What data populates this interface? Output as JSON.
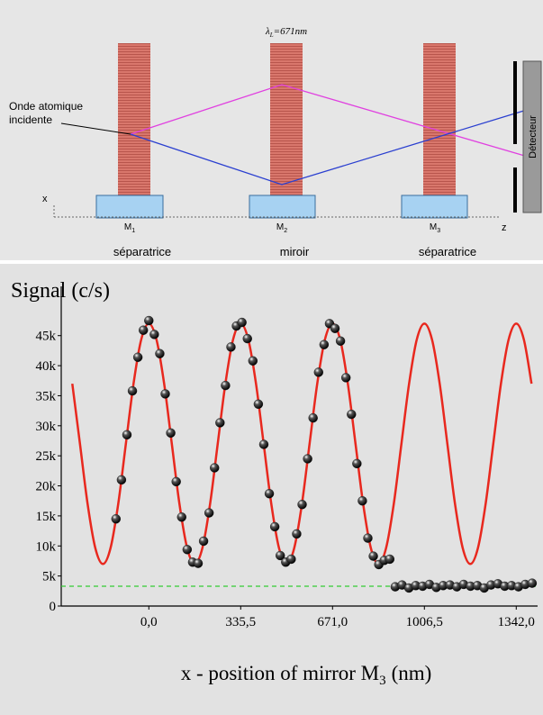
{
  "diagram": {
    "wavelength": {
      "symbol": "λ",
      "subscript": "L",
      "text": "=671nm"
    },
    "incident_label": [
      "Onde atomique",
      "incidente"
    ],
    "axis_x": "x",
    "axis_z": "z",
    "mirrors": [
      {
        "label": "M",
        "index": "1",
        "role": "séparatrice"
      },
      {
        "label": "M",
        "index": "2",
        "role": "miroir"
      },
      {
        "label": "M",
        "index": "3",
        "role": "séparatrice"
      }
    ],
    "detector": "Détecteur"
  },
  "chart_data": {
    "type": "line",
    "title": "Signal (c/s)",
    "x_label": {
      "text": "x - position of mirror M",
      "subscript": "3",
      "unit": "(nm)"
    },
    "xlim": [
      -320,
      1420
    ],
    "ylim": [
      0,
      52000
    ],
    "xticks": [
      {
        "value": 0,
        "label": "0,0"
      },
      {
        "value": 335.5,
        "label": "335,5"
      },
      {
        "value": 671,
        "label": "671,0"
      },
      {
        "value": 1006.5,
        "label": "1006,5"
      },
      {
        "value": 1342,
        "label": "1342,0"
      }
    ],
    "yticks": [
      {
        "value": 0,
        "label": "0"
      },
      {
        "value": 5000,
        "label": "5k"
      },
      {
        "value": 10000,
        "label": "10k"
      },
      {
        "value": 15000,
        "label": "15k"
      },
      {
        "value": 20000,
        "label": "20k"
      },
      {
        "value": 25000,
        "label": "25k"
      },
      {
        "value": 30000,
        "label": "30k"
      },
      {
        "value": 35000,
        "label": "35k"
      },
      {
        "value": 40000,
        "label": "40k"
      },
      {
        "value": 45000,
        "label": "45k"
      }
    ],
    "hline": {
      "value": 3300,
      "color": "#33cc33"
    },
    "series": [
      {
        "type": "line",
        "color": "#e8281e",
        "x": [
          -279.6,
          -251.6,
          -223.7,
          -195.7,
          -167.7,
          -139.8,
          -111.8,
          -83.9,
          -55.9,
          -28.0,
          0,
          28.0,
          55.9,
          83.9,
          111.8,
          139.8,
          167.8,
          195.7,
          223.7,
          251.6,
          279.6,
          307.5,
          335.5,
          363.5,
          391.4,
          419.4,
          447.3,
          475.3,
          503.3,
          531.2,
          559.2,
          587.1,
          615.1,
          643.0,
          671.0,
          699.0,
          726.9,
          754.9,
          782.8,
          810.8,
          838.8,
          866.7,
          894.7,
          922.6,
          950.6,
          978.5,
          1006.5,
          1034.5,
          1062.4,
          1090.4,
          1118.3,
          1146.3,
          1174.3,
          1202.2,
          1230.2,
          1258.1,
          1286.1,
          1314.0,
          1342.0,
          1370.0,
          1397.9
        ],
        "values": [
          37000,
          27000,
          17000,
          9680,
          7000,
          9680,
          17000,
          27000,
          37000,
          44320,
          47000,
          44320,
          37000,
          27000,
          17000,
          9680,
          7000,
          9680,
          17000,
          27000,
          37000,
          44320,
          47000,
          44320,
          37000,
          27000,
          17000,
          9680,
          7000,
          9680,
          17000,
          27000,
          37000,
          44320,
          47000,
          44320,
          37000,
          27000,
          17000,
          9680,
          7000,
          9680,
          17000,
          27000,
          37000,
          44320,
          47000,
          44320,
          37000,
          27000,
          17000,
          9680,
          7000,
          9680,
          17000,
          27000,
          37000,
          44320,
          47000,
          44320,
          37000
        ]
      },
      {
        "type": "scatter",
        "color": "#111111",
        "x": [
          -120,
          -100,
          -80,
          -60,
          -40,
          -20,
          0,
          20,
          40,
          60,
          80,
          100,
          120,
          140,
          160,
          180,
          200,
          220,
          240,
          260,
          280,
          300,
          320,
          340,
          360,
          380,
          400,
          420,
          440,
          460,
          480,
          500,
          520,
          540,
          560,
          580,
          600,
          620,
          640,
          660,
          680,
          700,
          720,
          740,
          760,
          780,
          800,
          820,
          840,
          860,
          880,
          900,
          925,
          950,
          975,
          1000,
          1025,
          1050,
          1075,
          1100,
          1125,
          1150,
          1175,
          1200,
          1225,
          1250,
          1275,
          1300,
          1325,
          1350,
          1375,
          1400
        ],
        "values": [
          14500,
          21000,
          28500,
          35800,
          41400,
          45900,
          47500,
          45200,
          42000,
          35300,
          28800,
          20700,
          14800,
          9400,
          7300,
          7100,
          10800,
          15500,
          23000,
          30500,
          36700,
          43100,
          46600,
          47200,
          44500,
          40800,
          33600,
          26900,
          18700,
          13200,
          8400,
          7300,
          7800,
          12000,
          16900,
          24500,
          31300,
          38900,
          43500,
          47000,
          46200,
          44100,
          38000,
          31900,
          23700,
          17500,
          11300,
          8300,
          6900,
          7600,
          7800,
          3200,
          3500,
          3000,
          3400,
          3300,
          3600,
          3100,
          3400,
          3500,
          3200,
          3600,
          3300,
          3400,
          3000,
          3500,
          3700,
          3300,
          3400,
          3200,
          3600,
          3800
        ]
      }
    ]
  }
}
